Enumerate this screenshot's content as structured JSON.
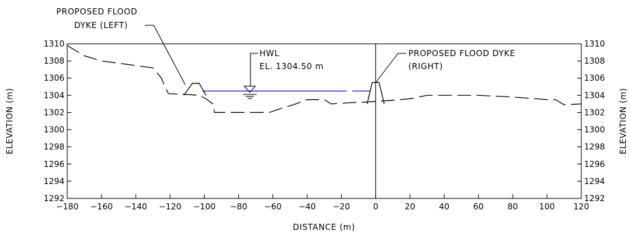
{
  "chart_data": {
    "type": "line",
    "xlabel": "DISTANCE (m)",
    "ylabel_left": "ELEVATION (m)",
    "ylabel_right": "ELEVATION (m)",
    "xlim": [
      -180,
      120
    ],
    "ylim": [
      1292,
      1310
    ],
    "x_ticks": [
      -180,
      -160,
      -140,
      -120,
      -100,
      -80,
      -60,
      -40,
      -20,
      0,
      20,
      40,
      60,
      80,
      100,
      120
    ],
    "y_ticks": [
      1292,
      1294,
      1296,
      1298,
      1300,
      1302,
      1304,
      1306,
      1308,
      1310
    ],
    "grid": false,
    "series": [
      {
        "style": "dashed",
        "color": "#000000",
        "points": [
          [
            -180,
            1309.8
          ],
          [
            -170,
            1308.6
          ],
          [
            -160,
            1308.0
          ],
          [
            -145,
            1307.6
          ],
          [
            -130,
            1307.2
          ],
          [
            -125,
            1306.0
          ],
          [
            -123,
            1305.0
          ],
          [
            -121,
            1304.2
          ],
          [
            -110,
            1304.1
          ],
          [
            -103,
            1304.0
          ],
          [
            -99,
            1303.6
          ],
          [
            -95,
            1303.0
          ],
          [
            -94,
            1302.0
          ],
          [
            -62,
            1302.0
          ],
          [
            -55,
            1302.5
          ],
          [
            -48,
            1302.9
          ],
          [
            -40,
            1303.5
          ],
          [
            -30,
            1303.5
          ],
          [
            -26,
            1303.0
          ],
          [
            -18,
            1303.1
          ],
          [
            -10,
            1303.2
          ],
          [
            -7,
            1303.2
          ],
          [
            8,
            1303.4
          ],
          [
            20,
            1303.6
          ],
          [
            30,
            1304.0
          ],
          [
            60,
            1304.0
          ],
          [
            80,
            1303.8
          ],
          [
            100,
            1303.5
          ],
          [
            105,
            1303.5
          ],
          [
            110,
            1302.9
          ],
          [
            120,
            1303.0
          ]
        ]
      }
    ],
    "hwl_line": {
      "elevation": 1304.5,
      "x_start": -101,
      "x_end": -3,
      "color": "#0000ff"
    },
    "dykes": [
      {
        "name": "left",
        "base_left": -112,
        "crest_left": -107,
        "crest_right": -103,
        "base_right": -99,
        "base_elev": 1304.0,
        "crest_elev": 1305.4
      },
      {
        "name": "right",
        "base_left": -5,
        "crest_left": -2,
        "crest_right": 2,
        "base_right": 5,
        "base_elev": 1303.0,
        "crest_elev": 1305.5
      }
    ],
    "annotations": {
      "left_dyke_line1": "PROPOSED FLOOD",
      "left_dyke_line2": "DYKE (LEFT)",
      "right_dyke_line1": "PROPOSED FLOOD DYKE",
      "right_dyke_line2": "(RIGHT)",
      "hwl_line1": "HWL",
      "hwl_line2": "EL. 1304.50 m"
    }
  }
}
